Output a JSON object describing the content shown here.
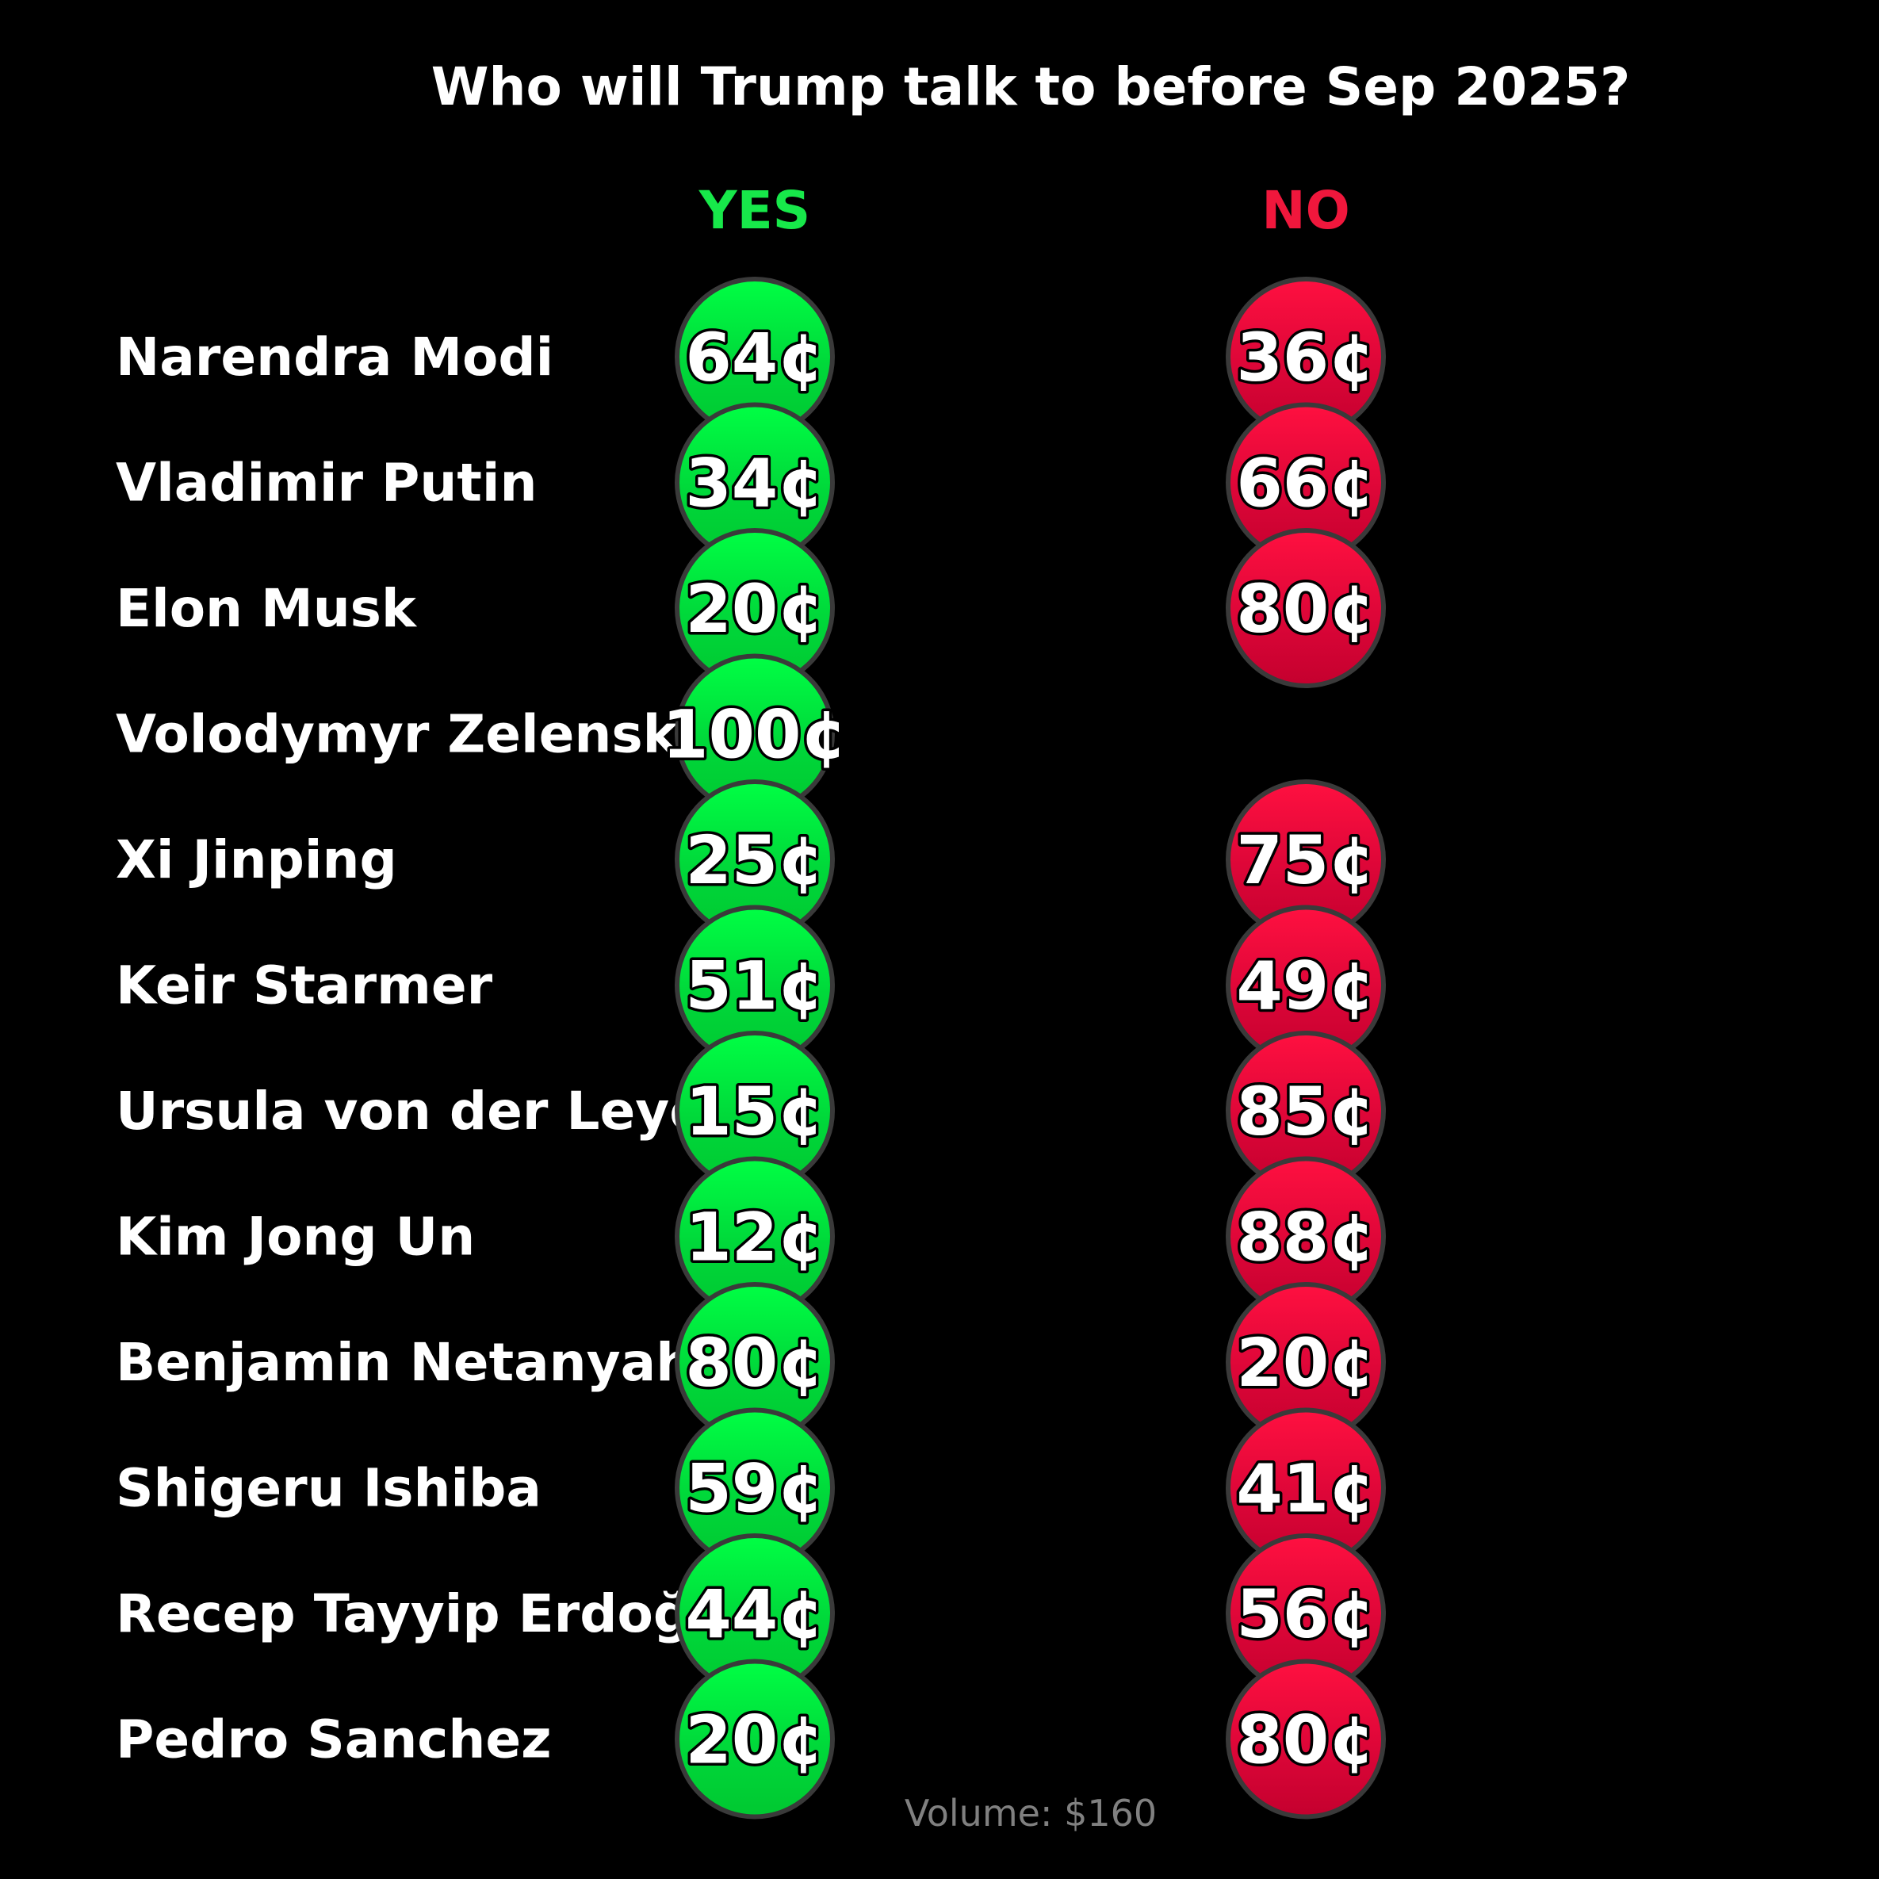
{
  "chart_data": {
    "type": "table",
    "title": "Who will Trump talk to before Sep 2025?",
    "columns": [
      {
        "label": "YES",
        "color": "#17e84a",
        "bubble_color": "#00cc33"
      },
      {
        "label": "NO",
        "color": "#f0173c",
        "bubble_color": "#cc0033"
      }
    ],
    "unit": "¢",
    "rows": [
      {
        "name": "Narendra Modi",
        "yes": 64,
        "no": 36
      },
      {
        "name": "Vladimir Putin",
        "yes": 34,
        "no": 66
      },
      {
        "name": "Elon Musk",
        "yes": 20,
        "no": 80
      },
      {
        "name": "Volodymyr Zelenskyy",
        "yes": 100,
        "no": null
      },
      {
        "name": "Xi Jinping",
        "yes": 25,
        "no": 75
      },
      {
        "name": "Keir Starmer",
        "yes": 51,
        "no": 49
      },
      {
        "name": "Ursula von der Leyen",
        "yes": 15,
        "no": 85
      },
      {
        "name": "Kim Jong Un",
        "yes": 12,
        "no": 88
      },
      {
        "name": "Benjamin Netanyahu",
        "yes": 80,
        "no": 20
      },
      {
        "name": "Shigeru Ishiba",
        "yes": 59,
        "no": 41
      },
      {
        "name": "Recep Tayyip Erdoğan",
        "yes": 44,
        "no": 56
      },
      {
        "name": "Pedro Sanchez",
        "yes": 20,
        "no": 80
      }
    ],
    "volume": "Volume: $160",
    "volume_color": "#808080",
    "background": "#000000"
  }
}
